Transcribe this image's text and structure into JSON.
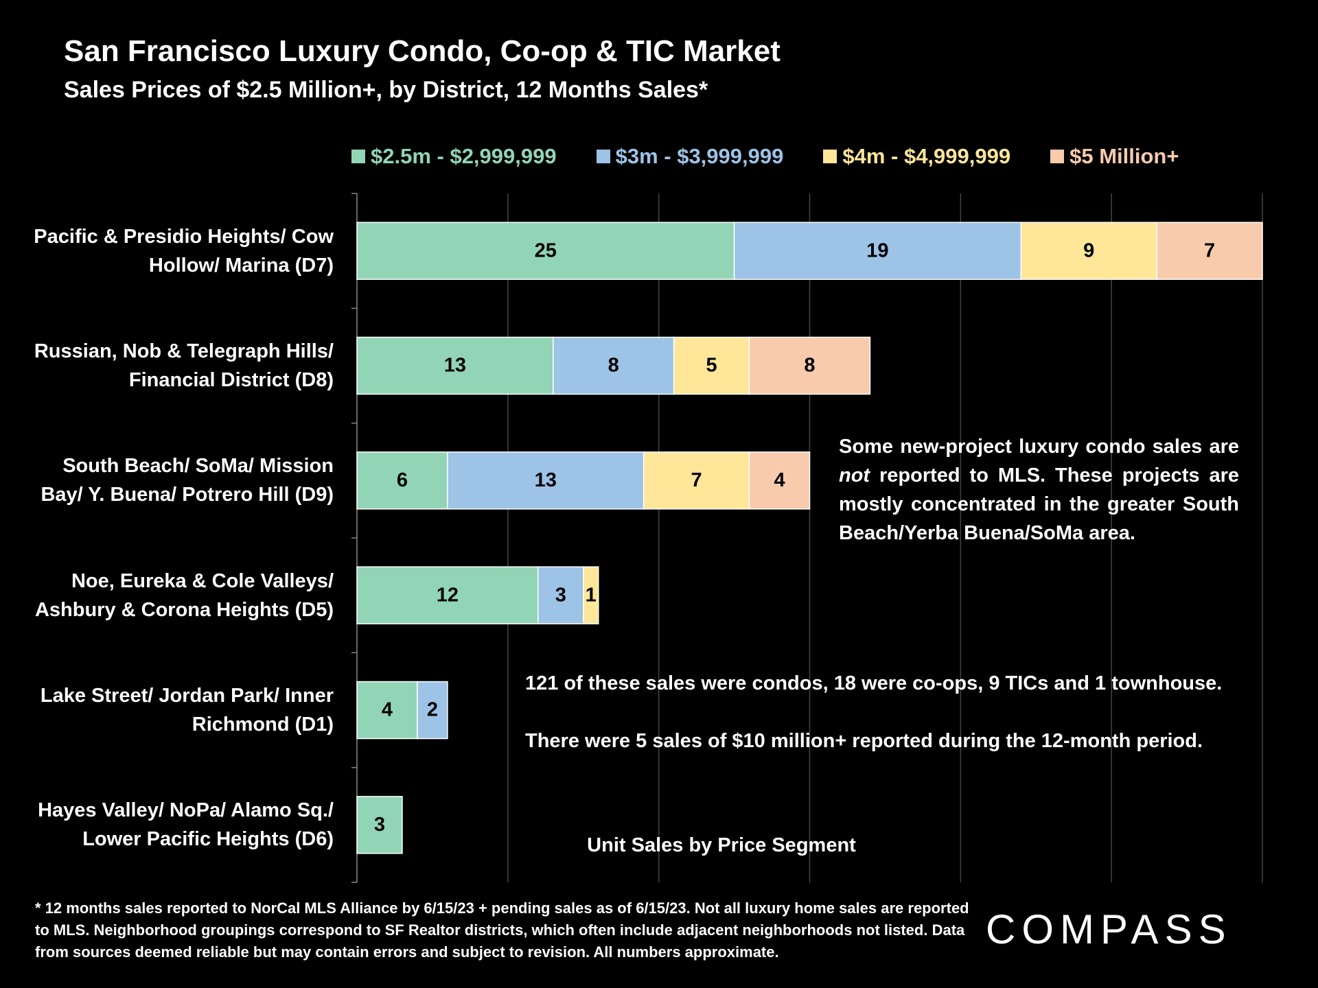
{
  "chart_data": {
    "type": "stacked-bar-horizontal",
    "title": "San Francisco Luxury Condo, Co-op & TIC Market",
    "subtitle": "Sales Prices of $2.5 Million+, by District, 12 Months Sales*",
    "x_label": "Unit Sales by Price Segment",
    "categories": [
      "Pacific & Presidio Heights/ Cow Hollow/ Marina (D7)",
      "Russian, Nob & Telegraph Hills/ Financial District (D8)",
      "South Beach/ SoMa/ Mission Bay/ Y. Buena/ Potrero Hill (D9)",
      "Noe, Eureka & Cole Valleys/ Ashbury & Corona Heights (D5)",
      "Lake Street/ Jordan Park/ Inner Richmond (D1)",
      "Hayes Valley/ NoPa/ Alamo Sq./ Lower Pacific Heights (D6)"
    ],
    "series": [
      {
        "name": "$2.5m - $2,999,999",
        "color": "#92d5b6",
        "values": [
          25,
          13,
          6,
          12,
          4,
          3
        ]
      },
      {
        "name": "$3m - $3,999,999",
        "color": "#9dc3e6",
        "values": [
          19,
          8,
          13,
          3,
          2,
          null
        ]
      },
      {
        "name": "$4m - $4,999,999",
        "color": "#ffe699",
        "values": [
          9,
          5,
          7,
          1,
          null,
          null
        ]
      },
      {
        "name": "$5 Million+",
        "color": "#f8cbad",
        "values": [
          7,
          8,
          4,
          null,
          null,
          null
        ]
      }
    ],
    "xlim": [
      0,
      60
    ],
    "xticks": [
      0,
      10,
      20,
      30,
      40,
      50,
      60
    ],
    "grid": true,
    "annotations": {
      "box": [
        "Some new-project luxury condo sales are ",
        "not",
        " reported to MLS. These projects are mostly concentrated in the greater South Beach/Yerba Buena/SoMa area."
      ],
      "note1": "121 of these sales were condos, 18 were co-ops, 9 TICs and 1 townhouse.",
      "note2": "There were 5 sales of $10 million+ reported during the 12-month period."
    },
    "footnote": "* 12 months sales reported to NorCal MLS Alliance by 6/15/23 + pending sales as of 6/15/23. Not all luxury home sales are reported to MLS. Neighborhood groupings correspond to SF Realtor districts, which often include adjacent neighborhoods not listed. Data from sources deemed reliable but may contain errors and subject to revision. All numbers approximate.",
    "logo": "COMPASS"
  }
}
